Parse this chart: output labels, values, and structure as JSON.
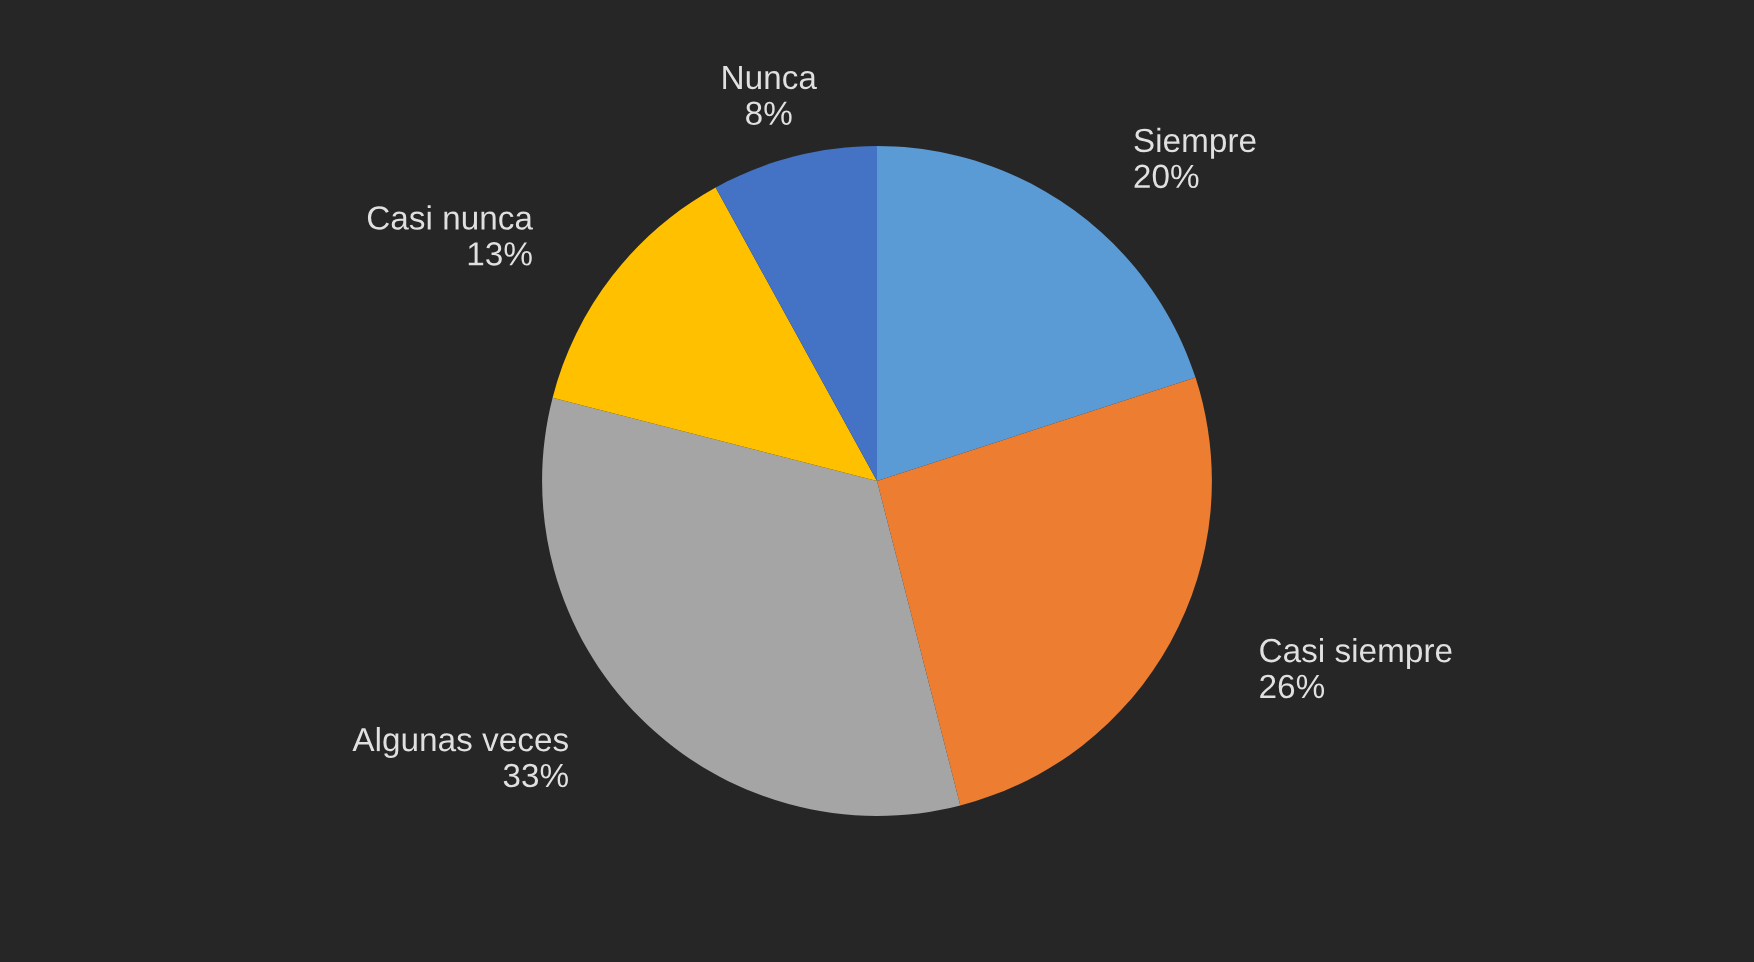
{
  "chart_data": {
    "type": "pie",
    "categories": [
      "Siempre",
      "Casi siempre",
      "Algunas veces",
      "Casi nunca",
      "Nunca"
    ],
    "values": [
      20,
      26,
      33,
      13,
      8
    ],
    "value_labels": [
      "20%",
      "26%",
      "33%",
      "13%",
      "8%"
    ],
    "colors": [
      "#5b9bd5",
      "#ed7d31",
      "#a5a5a5",
      "#ffc000",
      "#4472c4"
    ],
    "legend": false
  }
}
